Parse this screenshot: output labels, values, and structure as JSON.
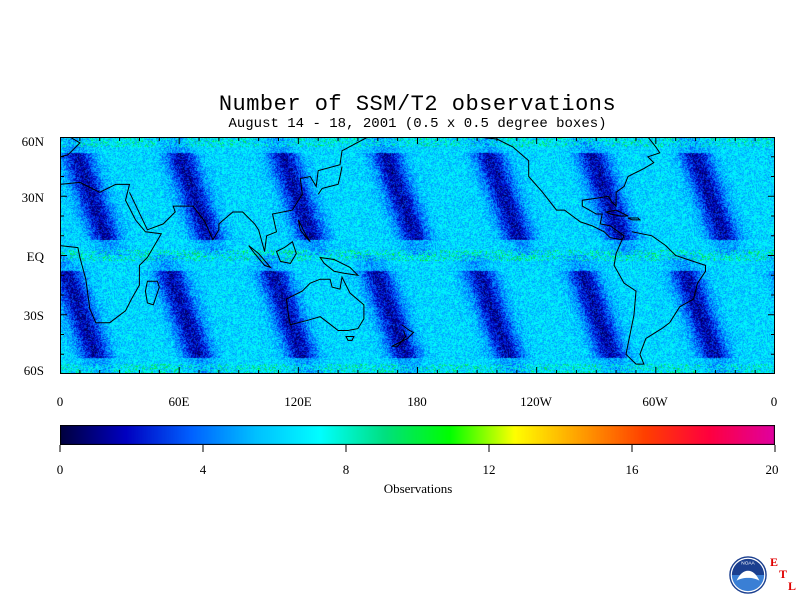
{
  "title": "Number of SSM/T2 observations",
  "subtitle": "August 14 - 18, 2001 (0.5 x 0.5 degree boxes)",
  "map": {
    "lat_labels": [
      "60N",
      "30N",
      "EQ",
      "30S",
      "60S"
    ],
    "lon_labels": [
      "0",
      "60E",
      "120E",
      "180",
      "120W",
      "60W",
      "0"
    ],
    "lat_range": [
      -60,
      60
    ],
    "lon_range": [
      0,
      360
    ],
    "coastline_color": "#000000"
  },
  "colorbar": {
    "title": "Observations",
    "tick_labels": [
      "0",
      "4",
      "8",
      "12",
      "16",
      "20"
    ],
    "range": [
      0,
      20
    ],
    "colors": [
      "#000040",
      "#0000c0",
      "#0060ff",
      "#00c0ff",
      "#00ffff",
      "#00e080",
      "#00ff00",
      "#ffff00",
      "#ffa000",
      "#ff4000",
      "#ff0040",
      "#e000a0"
    ]
  },
  "logo": {
    "name": "noaa-logo",
    "text": "NOAA",
    "etl_letters": [
      "E",
      "T",
      "L"
    ],
    "etl_color": "#e00000"
  }
}
